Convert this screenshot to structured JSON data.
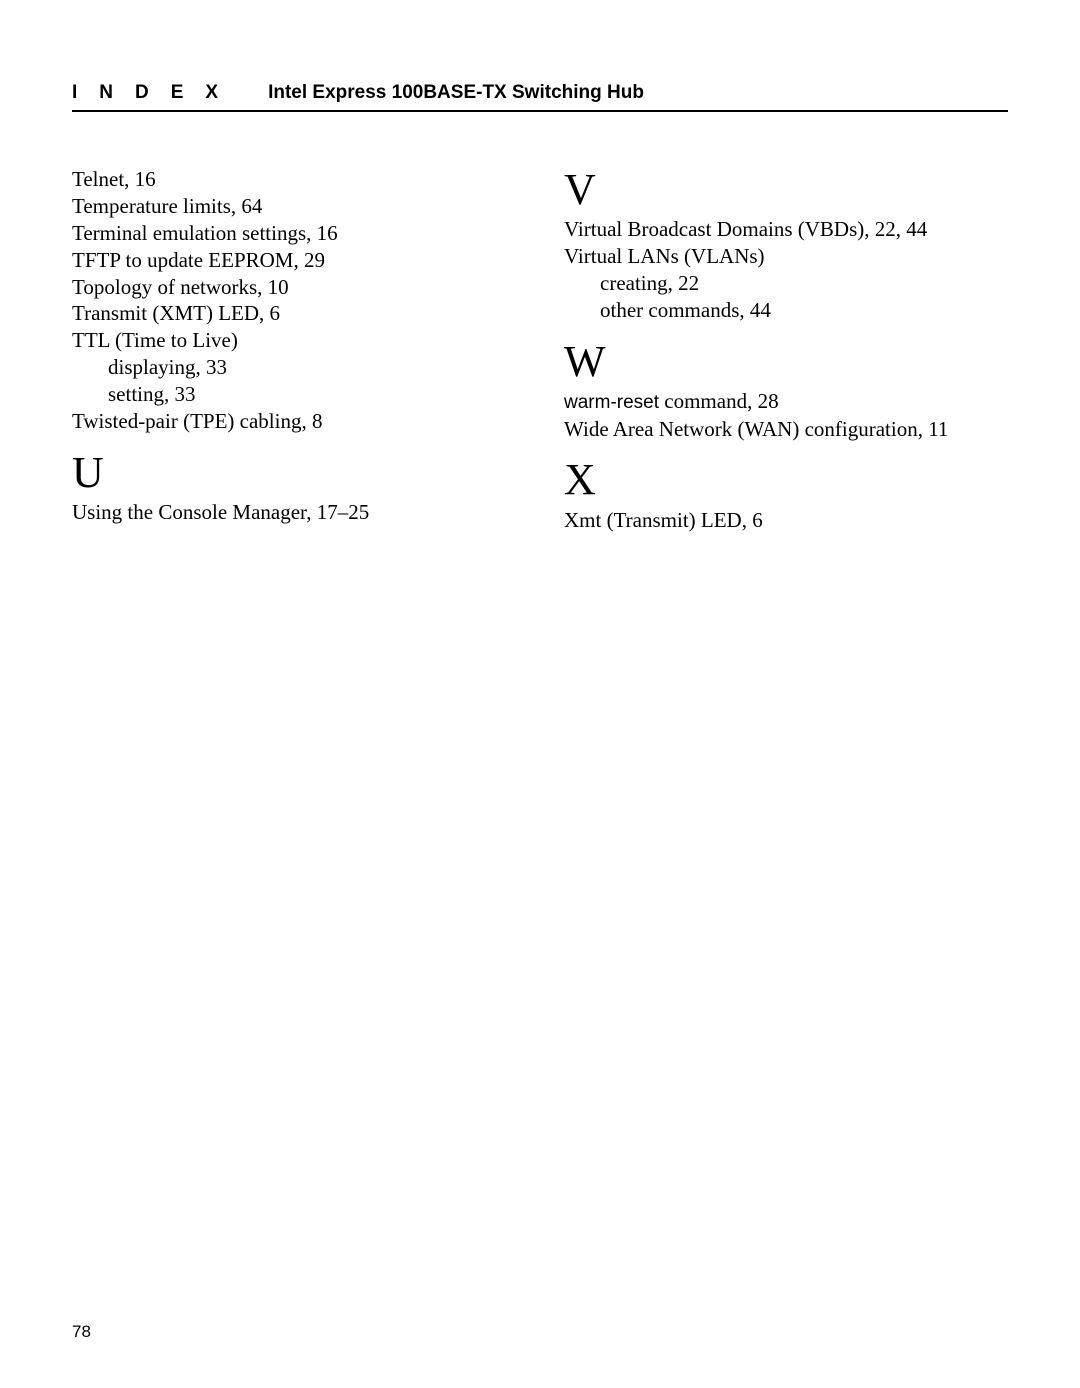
{
  "header": {
    "section": "INDEX",
    "title": "Intel Express 100BASE-TX Switching Hub"
  },
  "left": {
    "entries": [
      "Telnet, 16",
      "Temperature limits, 64",
      "Terminal emulation settings, 16",
      "TFTP to update EEPROM, 29",
      "Topology of networks, 10",
      "Transmit (XMT) LED, 6",
      "TTL (Time to Live)"
    ],
    "ttl_sub": [
      "displaying, 33",
      "setting, 33"
    ],
    "twisted": "Twisted-pair (TPE) cabling, 8",
    "U": "U",
    "u_entry": "Using the Console Manager, 17–25"
  },
  "right": {
    "V": "V",
    "v_entries": [
      "Virtual Broadcast Domains (VBDs), 22, 44",
      "Virtual LANs (VLANs)"
    ],
    "vlan_sub": [
      "creating, 22",
      "other commands, 44"
    ],
    "W": "W",
    "w_cmd": "warm-reset",
    "w_cmd_tail": "  command, 28",
    "w_entry2": "Wide Area Network (WAN) configuration, 11",
    "X": "X",
    "x_entry": "Xmt (Transmit) LED, 6"
  },
  "page": "78"
}
